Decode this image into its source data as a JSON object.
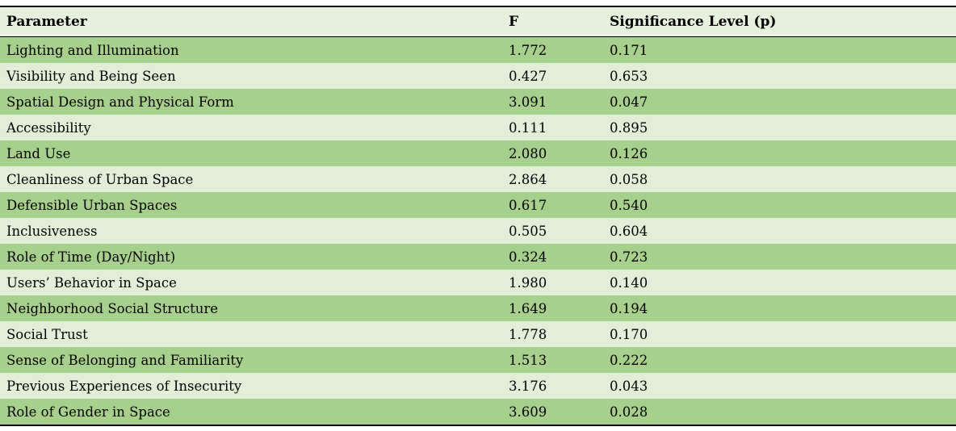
{
  "table": {
    "columns": [
      {
        "key": "parameter",
        "label": "Parameter"
      },
      {
        "key": "f",
        "label": "F"
      },
      {
        "key": "p",
        "label": "Significance Level (p)"
      }
    ],
    "rows": [
      {
        "parameter": "Lighting and Illumination",
        "f": "1.772",
        "p": "0.171"
      },
      {
        "parameter": "Visibility and Being Seen",
        "f": "0.427",
        "p": "0.653"
      },
      {
        "parameter": "Spatial Design and Physical Form",
        "f": "3.091",
        "p": "0.047"
      },
      {
        "parameter": "Accessibility",
        "f": "0.111",
        "p": "0.895"
      },
      {
        "parameter": "Land Use",
        "f": "2.080",
        "p": "0.126"
      },
      {
        "parameter": "Cleanliness of Urban Space",
        "f": "2.864",
        "p": "0.058"
      },
      {
        "parameter": "Defensible Urban Spaces",
        "f": "0.617",
        "p": "0.540"
      },
      {
        "parameter": "Inclusiveness",
        "f": "0.505",
        "p": "0.604"
      },
      {
        "parameter": "Role of Time (Day/Night)",
        "f": "0.324",
        "p": "0.723"
      },
      {
        "parameter": "Users’ Behavior in Space",
        "f": "1.980",
        "p": "0.140"
      },
      {
        "parameter": "Neighborhood Social Structure",
        "f": "1.649",
        "p": "0.194"
      },
      {
        "parameter": "Social Trust",
        "f": "1.778",
        "p": "0.170"
      },
      {
        "parameter": "Sense of Belonging and Familiarity",
        "f": "1.513",
        "p": "0.222"
      },
      {
        "parameter": "Previous Experiences of Insecurity",
        "f": "3.176",
        "p": "0.043"
      },
      {
        "parameter": "Role of Gender in Space",
        "f": "3.609",
        "p": "0.028"
      }
    ],
    "colors": {
      "row_dark_green": "#a7d08c",
      "row_light_green": "#e2eed8",
      "header_bg": "#e5f0dd",
      "rule": "#000000",
      "text": "#000000"
    }
  }
}
